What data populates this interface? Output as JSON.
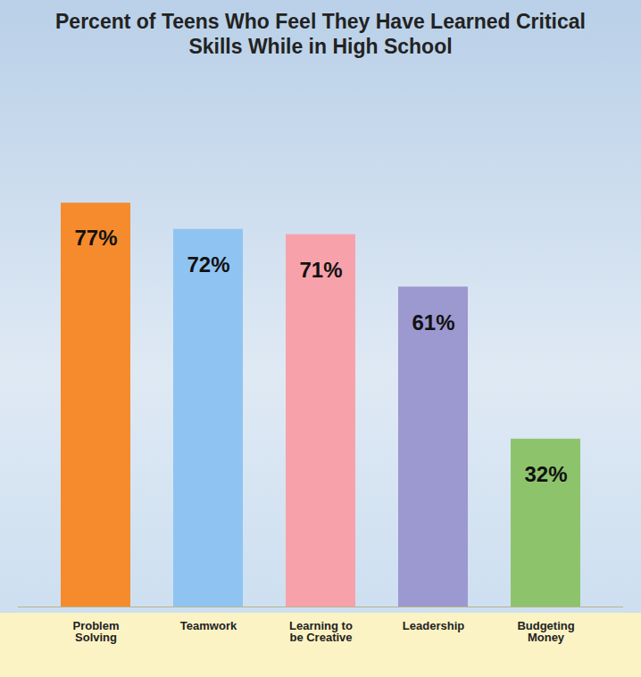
{
  "chart_data": {
    "type": "bar",
    "title": "Percent of Teens Who Feel They Have Learned Critical Skills While in High School",
    "categories": [
      "Problem Solving",
      "Teamwork",
      "Learning to be Creative",
      "Leadership",
      "Budgeting Money"
    ],
    "values": [
      77,
      72,
      71,
      61,
      32
    ],
    "value_labels": [
      "77%",
      "72%",
      "71%",
      "61%",
      "32%"
    ],
    "colors": [
      "#f58b2c",
      "#8fc4f2",
      "#f7a2aa",
      "#9c98d0",
      "#8dc46b"
    ],
    "ylim": [
      0,
      100
    ],
    "data_labels": true,
    "tick_labels": "x",
    "grid": false
  }
}
